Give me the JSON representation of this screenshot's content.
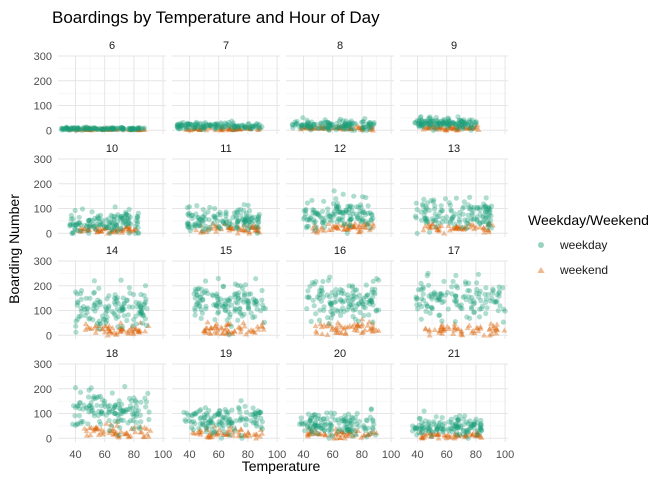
{
  "chart_data": {
    "type": "scatter",
    "title": "Boardings by Temperature and Hour of Day",
    "xlabel": "Temperature",
    "ylabel": "Boarding Number",
    "xlim": [
      28,
      102
    ],
    "ylim": [
      -15,
      300
    ],
    "x_ticks": [
      40,
      60,
      80,
      100
    ],
    "y_ticks": [
      0,
      100,
      200,
      300
    ],
    "grid": true,
    "facet_layout": {
      "rows": 4,
      "cols": 4
    },
    "legend": {
      "title": "Weekday/Weekend",
      "placement": "right",
      "entries": [
        {
          "name": "weekday",
          "color": "#1b9e77",
          "shape": "circle"
        },
        {
          "name": "weekend",
          "color": "#d95f02",
          "shape": "triangle"
        }
      ]
    },
    "facets": [
      {
        "hour": "6",
        "x_range": [
          30,
          88
        ],
        "weekday_mean": 6,
        "weekday_sd": 3,
        "weekend_mean": 4,
        "weekend_sd": 2
      },
      {
        "hour": "7",
        "x_range": [
          30,
          90
        ],
        "weekday_mean": 18,
        "weekday_sd": 7,
        "weekend_mean": 6,
        "weekend_sd": 3
      },
      {
        "hour": "8",
        "x_range": [
          32,
          90
        ],
        "weekday_mean": 22,
        "weekday_sd": 10,
        "weekend_mean": 8,
        "weekend_sd": 4
      },
      {
        "hour": "9",
        "x_range": [
          38,
          82
        ],
        "weekday_mean": 28,
        "weekday_sd": 12,
        "weekend_mean": 10,
        "weekend_sd": 5
      },
      {
        "hour": "10",
        "x_range": [
          36,
          84
        ],
        "weekday_mean": 45,
        "weekday_sd": 22,
        "weekend_mean": 14,
        "weekend_sd": 8
      },
      {
        "hour": "11",
        "x_range": [
          38,
          88
        ],
        "weekday_mean": 55,
        "weekday_sd": 25,
        "weekend_mean": 20,
        "weekend_sd": 10
      },
      {
        "hour": "12",
        "x_range": [
          40,
          88
        ],
        "weekday_mean": 75,
        "weekday_sd": 30,
        "weekend_mean": 22,
        "weekend_sd": 10
      },
      {
        "hour": "13",
        "x_range": [
          38,
          92
        ],
        "weekday_mean": 80,
        "weekday_sd": 35,
        "weekend_mean": 22,
        "weekend_sd": 10
      },
      {
        "hour": "14",
        "x_range": [
          40,
          90
        ],
        "weekday_mean": 110,
        "weekday_sd": 40,
        "weekend_mean": 22,
        "weekend_sd": 10
      },
      {
        "hour": "15",
        "x_range": [
          42,
          92
        ],
        "weekday_mean": 130,
        "weekday_sd": 40,
        "weekend_mean": 25,
        "weekend_sd": 12
      },
      {
        "hour": "16",
        "x_range": [
          42,
          92
        ],
        "weekday_mean": 140,
        "weekday_sd": 40,
        "weekend_mean": 25,
        "weekend_sd": 12
      },
      {
        "hour": "17",
        "x_range": [
          38,
          100
        ],
        "weekday_mean": 145,
        "weekday_sd": 42,
        "weekend_mean": 25,
        "weekend_sd": 12
      },
      {
        "hour": "18",
        "x_range": [
          38,
          92
        ],
        "weekday_mean": 110,
        "weekday_sd": 40,
        "weekend_mean": 25,
        "weekend_sd": 12
      },
      {
        "hour": "19",
        "x_range": [
          36,
          90
        ],
        "weekday_mean": 80,
        "weekday_sd": 30,
        "weekend_mean": 20,
        "weekend_sd": 10
      },
      {
        "hour": "20",
        "x_range": [
          36,
          90
        ],
        "weekday_mean": 55,
        "weekday_sd": 25,
        "weekend_mean": 15,
        "weekend_sd": 8
      },
      {
        "hour": "21",
        "x_range": [
          36,
          84
        ],
        "weekday_mean": 45,
        "weekday_sd": 20,
        "weekend_mean": 12,
        "weekend_sd": 6
      }
    ]
  }
}
